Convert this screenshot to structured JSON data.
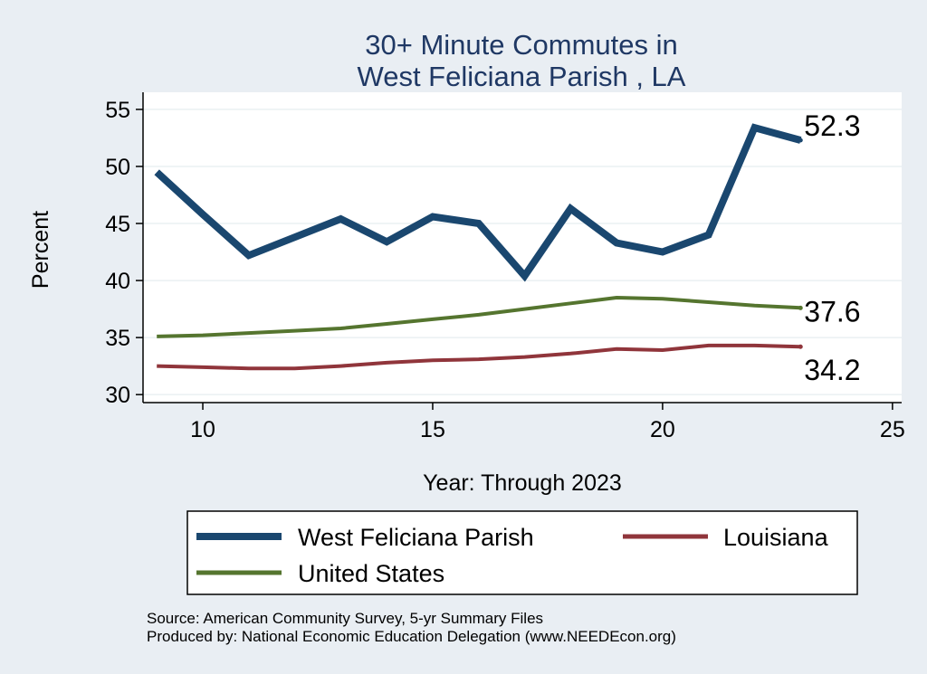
{
  "chart_data": {
    "type": "line",
    "title": [
      "30+ Minute Commutes in",
      "West Feliciana Parish , LA"
    ],
    "xlabel": "Year: Through 2023",
    "ylabel": "Percent",
    "xlim": [
      8.7,
      25.2
    ],
    "ylim": [
      29.3,
      56.5
    ],
    "xticks": [
      10,
      15,
      20,
      25
    ],
    "yticks": [
      30,
      35,
      40,
      45,
      50,
      55
    ],
    "grid": true,
    "legend_position": "bottom",
    "series": [
      {
        "name": "West Feliciana Parish",
        "color": "#1a476f",
        "x": [
          9,
          10,
          11,
          12,
          13,
          14,
          15,
          16,
          17,
          18,
          19,
          20,
          21,
          22,
          23
        ],
        "y": [
          49.5,
          45.8,
          42.2,
          43.8,
          45.4,
          43.4,
          45.6,
          45.0,
          40.4,
          46.3,
          43.3,
          42.5,
          44.0,
          53.4,
          52.3
        ],
        "end_label": "52.3"
      },
      {
        "name": "Louisiana",
        "color": "#90353b",
        "x": [
          9,
          10,
          11,
          12,
          13,
          14,
          15,
          16,
          17,
          18,
          19,
          20,
          21,
          22,
          23
        ],
        "y": [
          32.5,
          32.4,
          32.3,
          32.3,
          32.5,
          32.8,
          33.0,
          33.1,
          33.3,
          33.6,
          34.0,
          33.9,
          34.3,
          34.3,
          34.2
        ],
        "end_label": "34.2"
      },
      {
        "name": "United States",
        "color": "#55752f",
        "x": [
          9,
          10,
          11,
          12,
          13,
          14,
          15,
          16,
          17,
          18,
          19,
          20,
          21,
          22,
          23
        ],
        "y": [
          35.1,
          35.2,
          35.4,
          35.6,
          35.8,
          36.2,
          36.6,
          37.0,
          37.5,
          38.0,
          38.5,
          38.4,
          38.1,
          37.8,
          37.6
        ],
        "end_label": "37.6"
      }
    ]
  },
  "source_line1": "Source: American Community Survey, 5-yr Summary Files",
  "source_line2": "Produced by: National Economic Education Delegation (www.NEEDEcon.org)"
}
